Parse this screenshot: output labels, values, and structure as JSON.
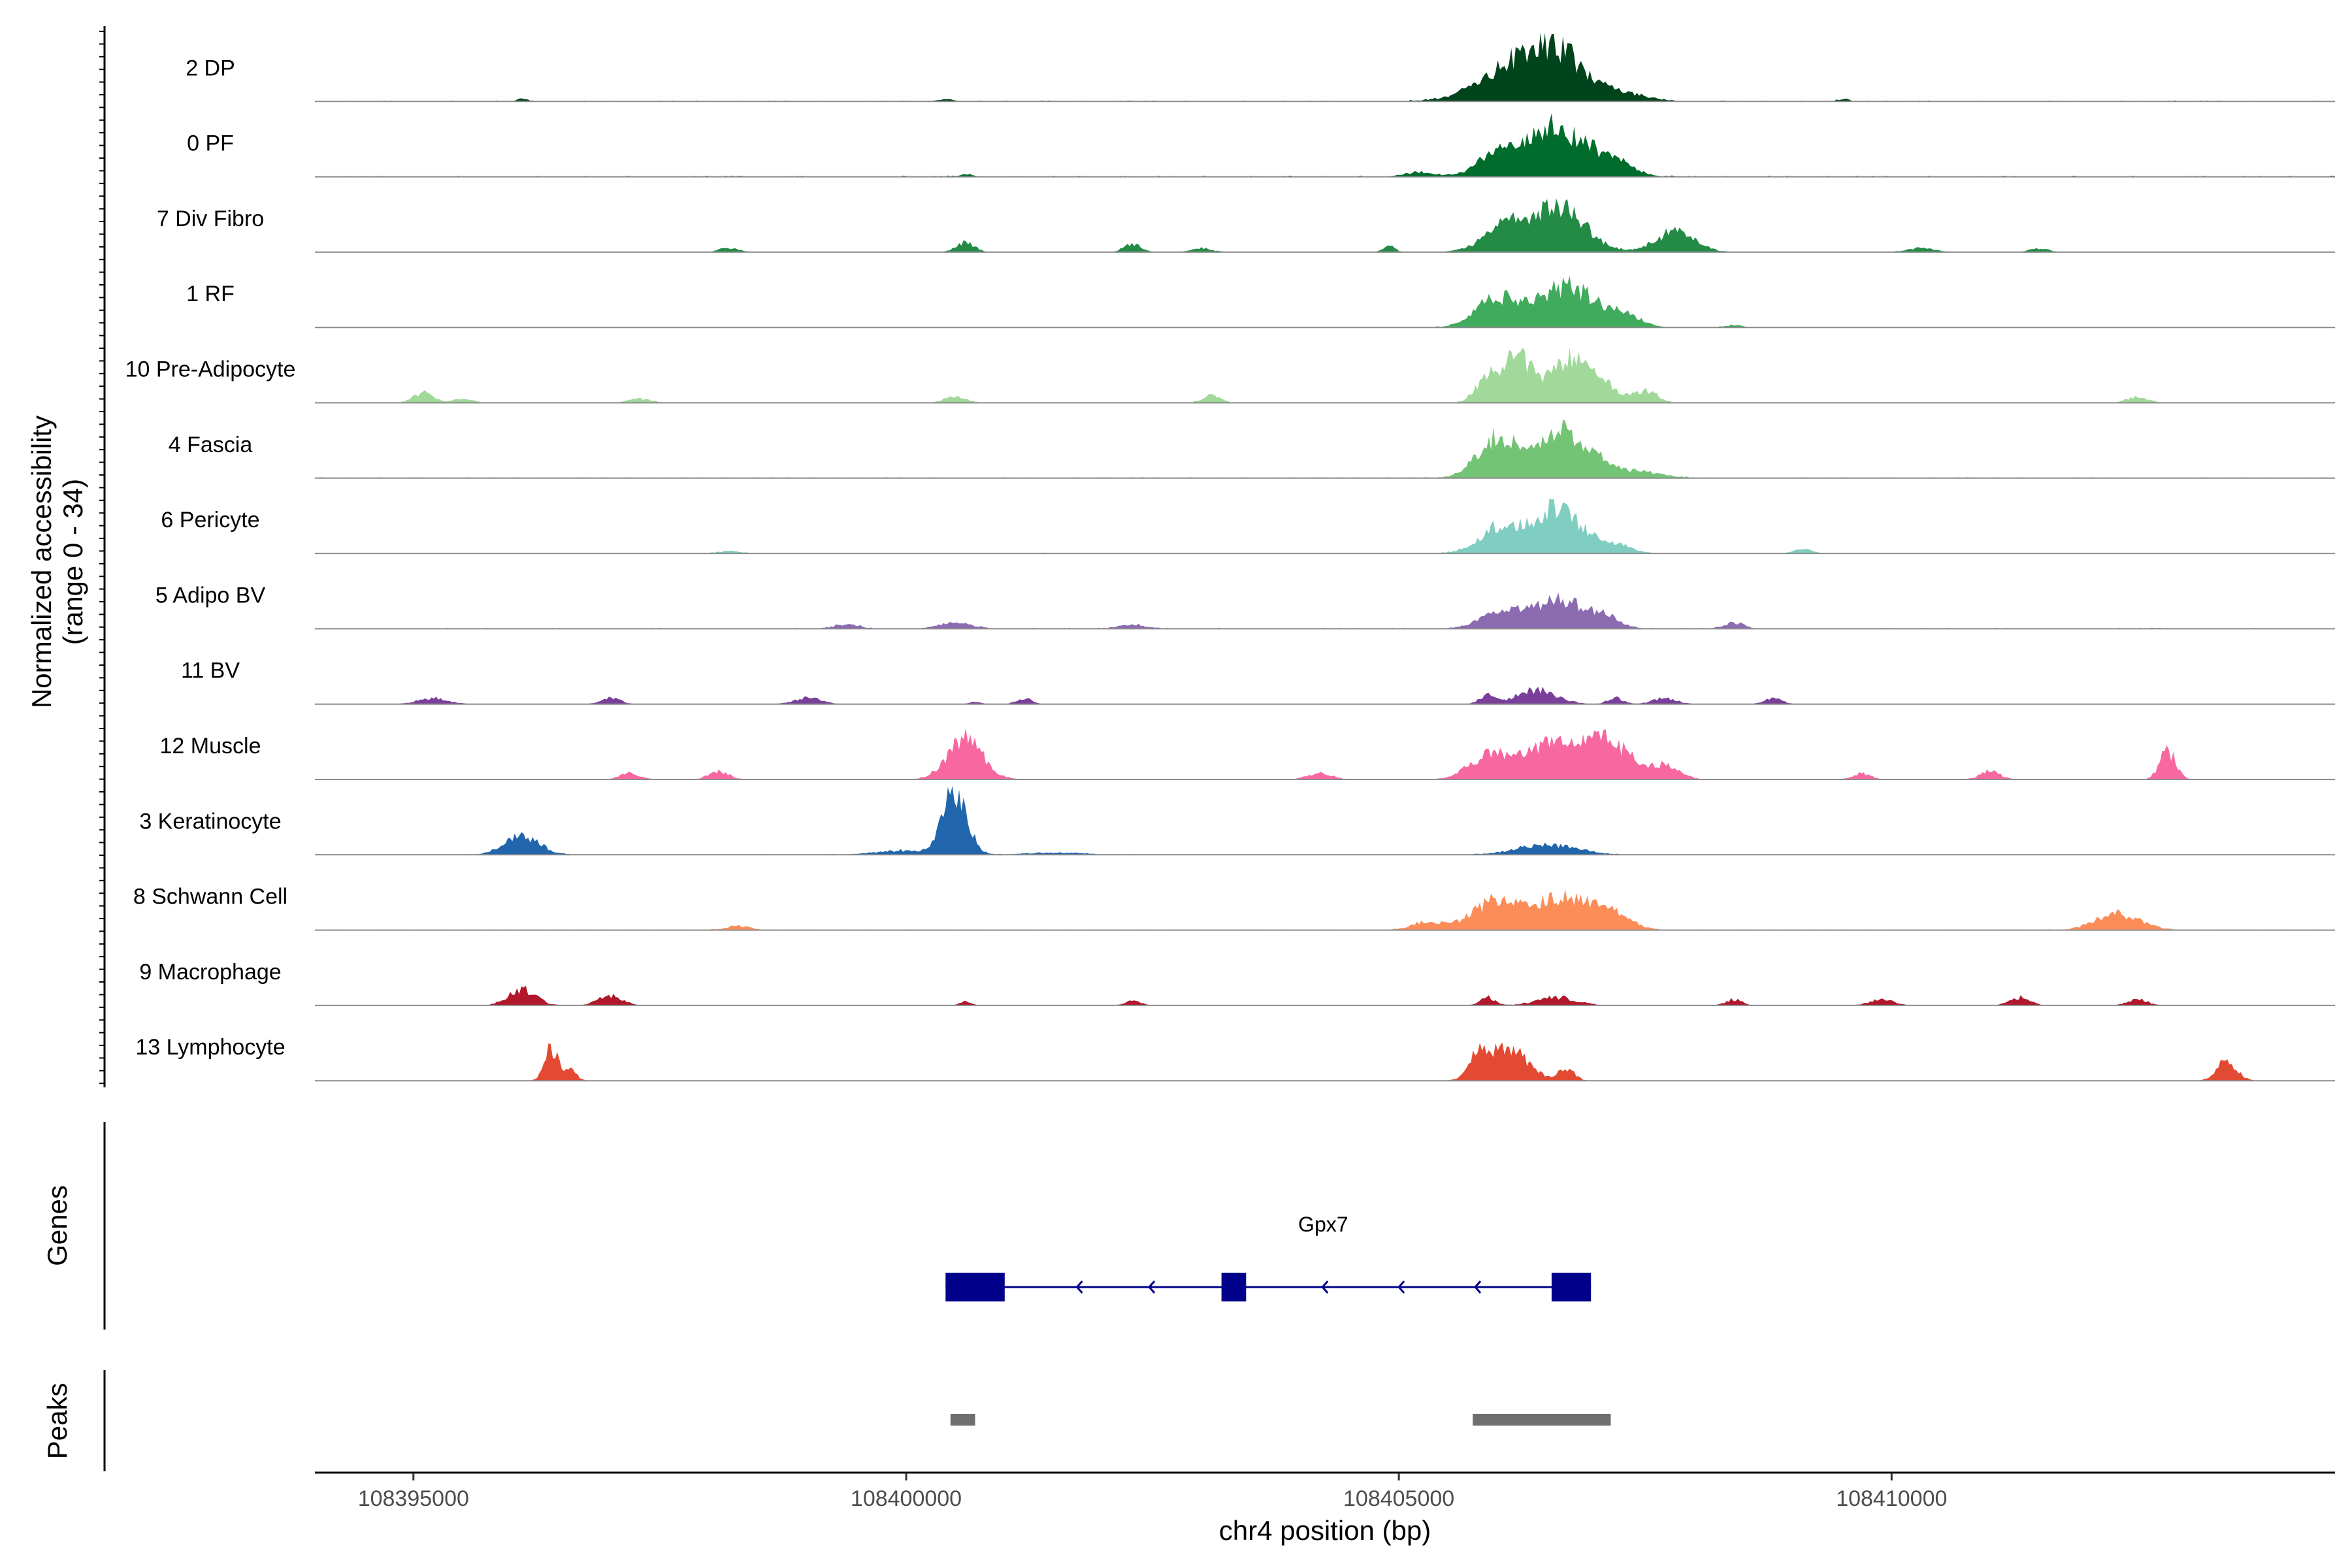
{
  "chart_data": {
    "type": "area",
    "title": "",
    "ylabel": "Normalized accessibility",
    "ylabel_range": "(range 0 - 34)",
    "y_range": [
      0,
      34
    ],
    "xlabel": "chr4 position (bp)",
    "xlim": [
      108394000,
      108414500
    ],
    "x_ticks": [
      108395000,
      108400000,
      108405000,
      108410000
    ],
    "x_tick_labels": [
      "108395000",
      "108400000",
      "108405000",
      "108410000"
    ],
    "series": [
      {
        "name": "2 DP",
        "color": "#00441b",
        "peaks": [
          [
            108406500,
            28,
            350
          ],
          [
            108405900,
            6,
            300
          ],
          [
            108407300,
            3,
            250
          ],
          [
            108396100,
            1,
            60
          ],
          [
            108400400,
            1,
            80
          ],
          [
            108409500,
            1,
            60
          ]
        ],
        "baseline": 0.5
      },
      {
        "name": "0 PF",
        "color": "#006d2c",
        "peaks": [
          [
            108406600,
            24,
            330
          ],
          [
            108406000,
            10,
            200
          ],
          [
            108407200,
            5,
            180
          ],
          [
            108405200,
            2,
            150
          ],
          [
            108400600,
            1,
            80
          ]
        ],
        "baseline": 0.6
      },
      {
        "name": "7 Div Fibro",
        "color": "#238b45",
        "peaks": [
          [
            108406600,
            22,
            280
          ],
          [
            108406100,
            9,
            180
          ],
          [
            108407800,
            10,
            200
          ],
          [
            108405900,
            3,
            200
          ],
          [
            108400600,
            5,
            90
          ],
          [
            108402300,
            4,
            90
          ],
          [
            108403000,
            2,
            100
          ],
          [
            108404900,
            3,
            60
          ],
          [
            108410300,
            2,
            140
          ],
          [
            108411500,
            2,
            90
          ],
          [
            108398200,
            2,
            100
          ]
        ],
        "baseline": 0.0
      },
      {
        "name": "1 RF",
        "color": "#41ab5d",
        "peaks": [
          [
            108406700,
            20,
            300
          ],
          [
            108406000,
            14,
            220
          ],
          [
            108407300,
            5,
            160
          ],
          [
            108408400,
            1,
            100
          ]
        ],
        "baseline": 0.4
      },
      {
        "name": "10 Pre-Adipocyte",
        "color": "#a1d99b",
        "peaks": [
          [
            108406200,
            22,
            150
          ],
          [
            108406700,
            18,
            200
          ],
          [
            108405900,
            12,
            120
          ],
          [
            108407000,
            10,
            180
          ],
          [
            108407500,
            6,
            120
          ],
          [
            108395100,
            5,
            100
          ],
          [
            108395500,
            2,
            100
          ],
          [
            108397300,
            2,
            120
          ],
          [
            108400500,
            3,
            110
          ],
          [
            108403100,
            4,
            90
          ],
          [
            108412500,
            3,
            110
          ]
        ],
        "baseline": 0.0
      },
      {
        "name": "4 Fascia",
        "color": "#74c476",
        "peaks": [
          [
            108406000,
            20,
            200
          ],
          [
            108406600,
            22,
            220
          ],
          [
            108407000,
            8,
            200
          ],
          [
            108407500,
            3,
            200
          ]
        ],
        "baseline": 0.5
      },
      {
        "name": "6 Pericyte",
        "color": "#80cdc1",
        "peaks": [
          [
            108406600,
            22,
            250
          ],
          [
            108406000,
            12,
            200
          ],
          [
            108407200,
            4,
            160
          ],
          [
            108409100,
            2,
            90
          ],
          [
            108398200,
            1,
            120
          ]
        ],
        "baseline": 0.4
      },
      {
        "name": "5 Adipo BV",
        "color": "#8c6bb1",
        "peaks": [
          [
            108406600,
            14,
            300
          ],
          [
            108406000,
            7,
            200
          ],
          [
            108407100,
            4,
            140
          ],
          [
            108408400,
            3,
            100
          ],
          [
            108400500,
            3,
            160
          ],
          [
            108399400,
            2,
            130
          ],
          [
            108402300,
            2,
            140
          ]
        ],
        "baseline": 0.5
      },
      {
        "name": "11 BV",
        "color": "#7a3f9a",
        "peaks": [
          [
            108406400,
            7,
            200
          ],
          [
            108405900,
            4,
            80
          ],
          [
            108407200,
            3,
            80
          ],
          [
            108407700,
            3,
            120
          ],
          [
            108408800,
            3,
            90
          ],
          [
            108395200,
            3,
            150
          ],
          [
            108397000,
            3,
            100
          ],
          [
            108400700,
            1,
            60
          ],
          [
            108401200,
            3,
            80
          ],
          [
            108399000,
            3,
            140
          ]
        ],
        "baseline": 0.0
      },
      {
        "name": "12 Muscle",
        "color": "#f768a1",
        "peaks": [
          [
            108400600,
            20,
            180
          ],
          [
            108405900,
            10,
            200
          ],
          [
            108406500,
            16,
            300
          ],
          [
            108407100,
            18,
            250
          ],
          [
            108407700,
            6,
            150
          ],
          [
            108404200,
            3,
            120
          ],
          [
            108412800,
            14,
            80
          ],
          [
            108397200,
            3,
            100
          ],
          [
            108398100,
            4,
            100
          ],
          [
            108411000,
            4,
            100
          ],
          [
            108409700,
            3,
            90
          ]
        ],
        "baseline": 0.0
      },
      {
        "name": "3 Keratinocyte",
        "color": "#2166ac",
        "peaks": [
          [
            108400500,
            32,
            120
          ],
          [
            108396100,
            9,
            180
          ],
          [
            108406500,
            5,
            300
          ],
          [
            108400000,
            2,
            300
          ],
          [
            108401500,
            1,
            300
          ]
        ],
        "baseline": 0.3
      },
      {
        "name": "8 Schwann Cell",
        "color": "#fc8d59",
        "peaks": [
          [
            108406000,
            14,
            250
          ],
          [
            108406700,
            16,
            300
          ],
          [
            108407200,
            5,
            180
          ],
          [
            108412300,
            8,
            220
          ],
          [
            108405300,
            4,
            160
          ],
          [
            108398300,
            2,
            120
          ]
        ],
        "baseline": 0.4
      },
      {
        "name": "9 Macrophage",
        "color": "#b2182b",
        "peaks": [
          [
            108396100,
            8,
            140
          ],
          [
            108397000,
            5,
            120
          ],
          [
            108405900,
            4,
            80
          ],
          [
            108406600,
            4,
            200
          ],
          [
            108408400,
            3,
            80
          ],
          [
            108409900,
            3,
            120
          ],
          [
            108411300,
            4,
            100
          ],
          [
            108402300,
            3,
            70
          ],
          [
            108400600,
            2,
            60
          ],
          [
            108412500,
            3,
            100
          ]
        ],
        "baseline": 0.0
      },
      {
        "name": "13 Lymphocyte",
        "color": "#e34a33",
        "peaks": [
          [
            108396400,
            16,
            70
          ],
          [
            108406100,
            16,
            200
          ],
          [
            108405800,
            10,
            90
          ],
          [
            108406700,
            6,
            80
          ],
          [
            108396600,
            5,
            60
          ],
          [
            108413400,
            10,
            100
          ]
        ],
        "baseline": 0.0
      }
    ],
    "genes": [
      {
        "name": "Gpx7",
        "strand": "-",
        "start": 108400400,
        "end": 108406950,
        "exons": [
          [
            108400400,
            108401000
          ],
          [
            108403200,
            108403450
          ],
          [
            108406550,
            108406950
          ]
        ],
        "color": "#00008b"
      }
    ],
    "peaks": [
      {
        "start": 108400450,
        "end": 108400700
      },
      {
        "start": 108405750,
        "end": 108407150
      }
    ],
    "peak_color": "#6e6e6e",
    "panel_labels": {
      "genes": "Genes",
      "peaks": "Peaks"
    }
  }
}
